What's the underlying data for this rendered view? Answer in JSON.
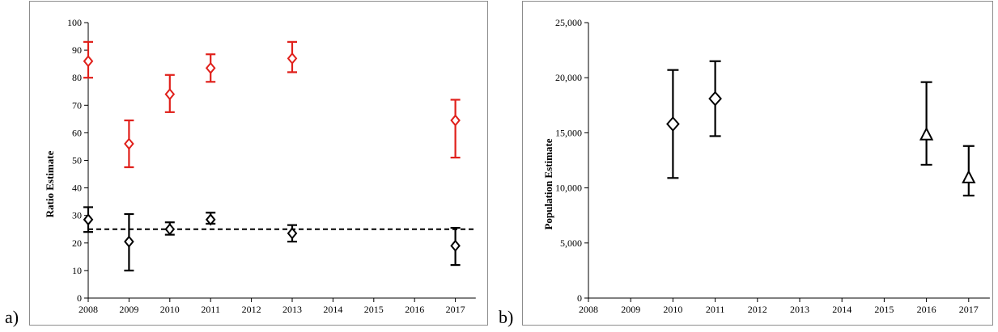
{
  "panels": {
    "a_label": "a)",
    "b_label": "b)"
  },
  "chart_data": [
    {
      "type": "scatter",
      "panel": "a",
      "title": "",
      "xlabel": "",
      "ylabel": "Ratio Estimate",
      "xlim": [
        2008,
        2017.5
      ],
      "ylim": [
        0,
        100
      ],
      "x_ticks": [
        "2008",
        "2009",
        "2010",
        "2011",
        "2012",
        "2013",
        "2014",
        "2015",
        "2016",
        "2017"
      ],
      "y_ticks": [
        "0",
        "10",
        "20",
        "30",
        "40",
        "50",
        "60",
        "70",
        "80",
        "90",
        "100"
      ],
      "grid": false,
      "reference_line": {
        "y": 25,
        "style": "dashed",
        "color": "#000000"
      },
      "series": [
        {
          "color": "#e0201b",
          "marker": "diamond",
          "points": [
            {
              "x": 2008,
              "y": 86,
              "low": 80,
              "high": 93
            },
            {
              "x": 2009,
              "y": 56,
              "low": 47.5,
              "high": 64.5
            },
            {
              "x": 2010,
              "y": 74,
              "low": 67.5,
              "high": 81
            },
            {
              "x": 2011,
              "y": 83.5,
              "low": 78.5,
              "high": 88.5
            },
            {
              "x": 2013,
              "y": 87,
              "low": 82,
              "high": 93
            },
            {
              "x": 2017,
              "y": 64.5,
              "low": 51,
              "high": 72
            }
          ]
        },
        {
          "color": "#000000",
          "marker": "diamond",
          "points": [
            {
              "x": 2008,
              "y": 28.5,
              "low": 24,
              "high": 33
            },
            {
              "x": 2009,
              "y": 20.5,
              "low": 10,
              "high": 30.5
            },
            {
              "x": 2010,
              "y": 25,
              "low": 23,
              "high": 27.5
            },
            {
              "x": 2011,
              "y": 28.5,
              "low": 27,
              "high": 31
            },
            {
              "x": 2013,
              "y": 23.5,
              "low": 20.5,
              "high": 26.5
            },
            {
              "x": 2017,
              "y": 19,
              "low": 12,
              "high": 25.5
            }
          ]
        }
      ]
    },
    {
      "type": "scatter",
      "panel": "b",
      "title": "",
      "xlabel": "",
      "ylabel": "Population Estimate",
      "xlim": [
        2008,
        2017.5
      ],
      "ylim": [
        0,
        25000
      ],
      "x_ticks": [
        "2008",
        "2009",
        "2010",
        "2011",
        "2012",
        "2013",
        "2014",
        "2015",
        "2016",
        "2017"
      ],
      "y_ticks": [
        "0",
        "5,000",
        "10,000",
        "15,000",
        "20,000",
        "25,000"
      ],
      "grid": false,
      "series": [
        {
          "color": "#000000",
          "marker": "diamond",
          "points": [
            {
              "x": 2010,
              "y": 15800,
              "low": 10900,
              "high": 20700
            },
            {
              "x": 2011,
              "y": 18100,
              "low": 14700,
              "high": 21500
            }
          ]
        },
        {
          "color": "#000000",
          "marker": "triangle",
          "points": [
            {
              "x": 2016,
              "y": 14800,
              "low": 12100,
              "high": 19600
            },
            {
              "x": 2017,
              "y": 10900,
              "low": 9300,
              "high": 13800
            }
          ]
        }
      ]
    }
  ]
}
